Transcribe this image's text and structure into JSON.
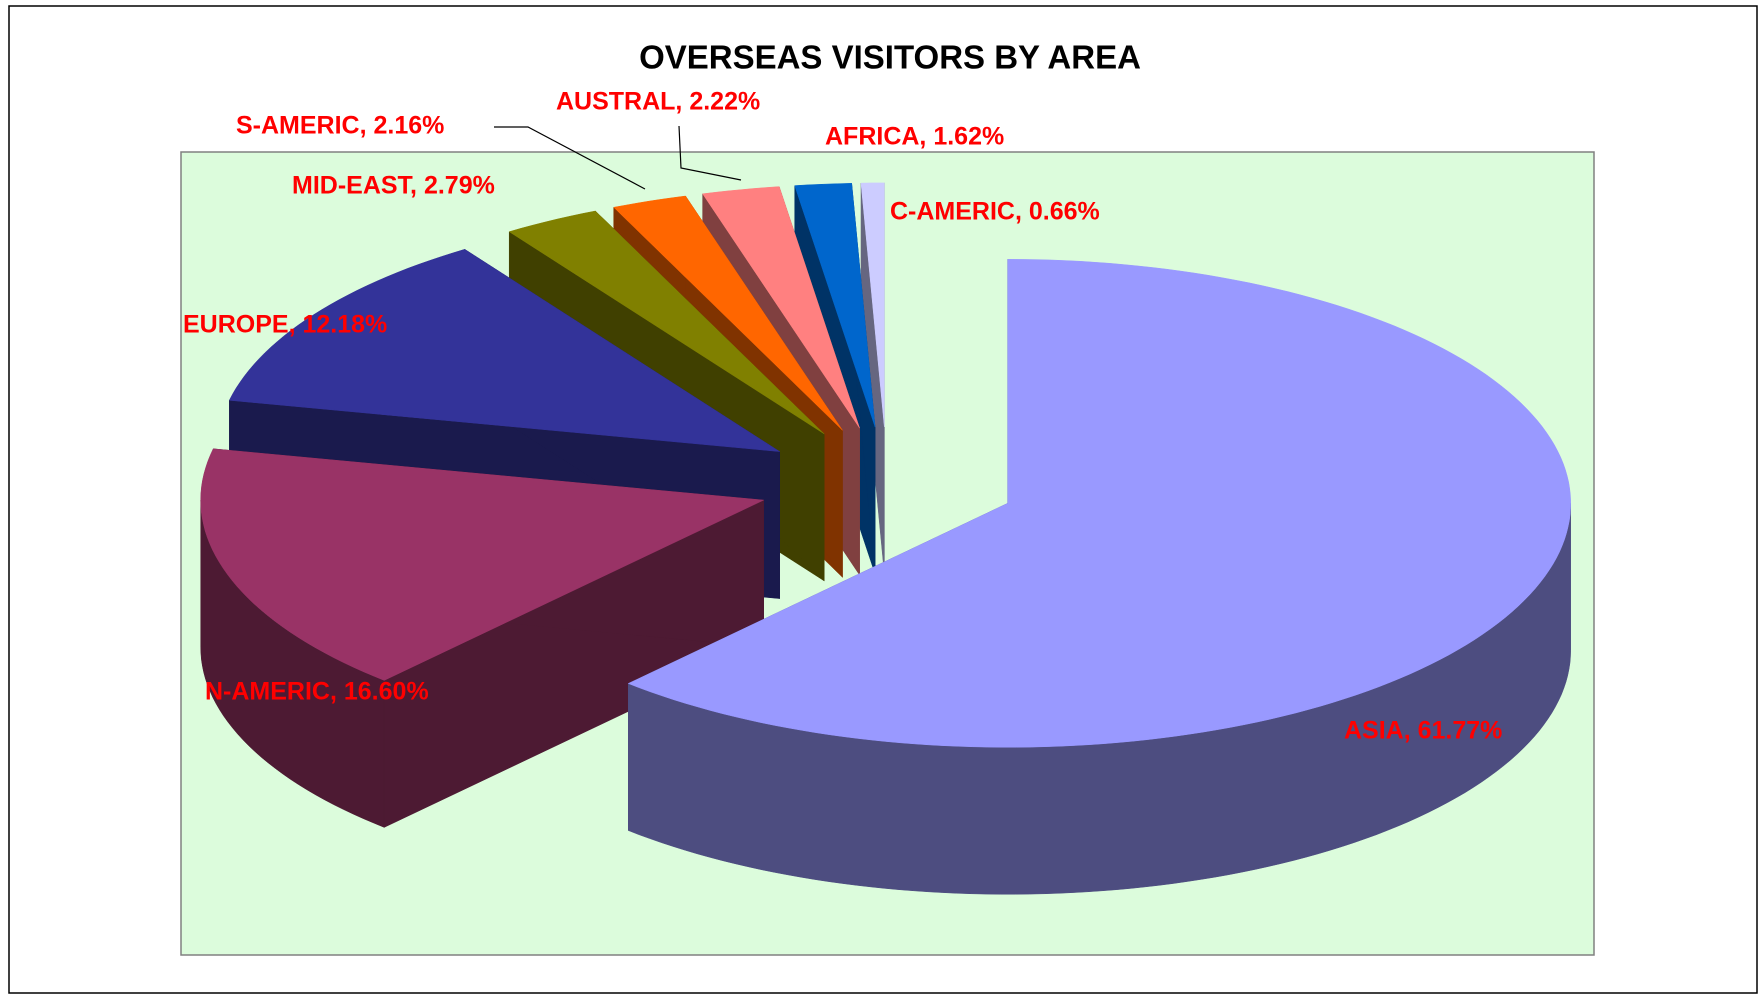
{
  "chart_data": {
    "type": "pie",
    "title": "OVERSEAS VISITORS BY AREA",
    "values": [
      61.77,
      16.6,
      12.18,
      2.79,
      2.16,
      2.22,
      1.62,
      0.66
    ],
    "value_labels": [
      "ASIA, 61.77%",
      "N-AMERIC, 16.60%",
      "EUROPE, 12.18%",
      "MID-EAST, 2.79%",
      "S-AMERIC, 2.16%",
      "AUSTRAL, 2.22%",
      "AFRICA, 1.62%",
      "C-AMERIC, 0.66%"
    ],
    "colors": [
      "#9999ff",
      "#993366",
      "#333399",
      "#808000",
      "#ff6600",
      "#ff8080",
      "#0066cc",
      "#ccccff"
    ]
  }
}
